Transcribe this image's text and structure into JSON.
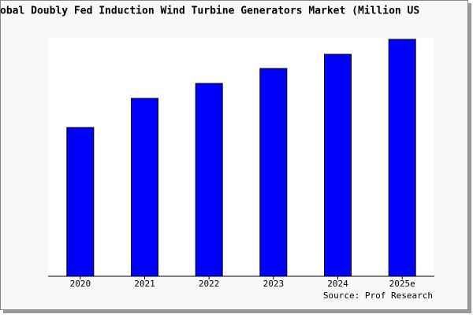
{
  "chart_data": {
    "type": "bar",
    "title": "obal Doubly Fed Induction Wind Turbine Generators Market (Million US",
    "source": "Source: Prof Research",
    "categories": [
      "2020",
      "2021",
      "2022",
      "2023",
      "2024",
      "2025e"
    ],
    "values": [
      189,
      226,
      245,
      264,
      282,
      301
    ],
    "color": "#0000ff",
    "ylim": [
      0,
      303
    ]
  }
}
